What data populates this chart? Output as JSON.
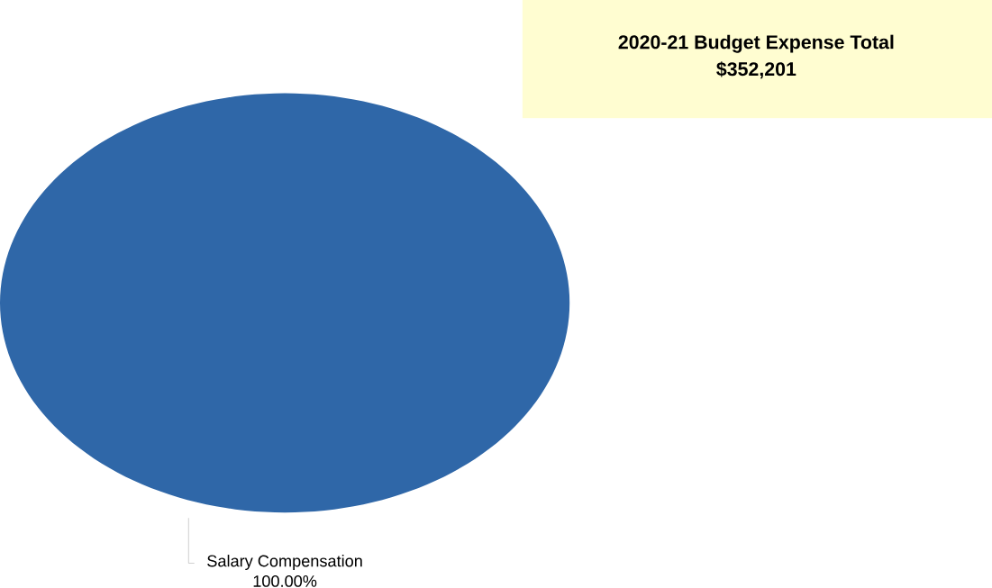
{
  "chart_data": {
    "type": "pie",
    "title": "2020-21 Budget Expense Total",
    "subtitle": "$352,201",
    "categories": [
      "Salary Compensation"
    ],
    "values": [
      100
    ],
    "colors": [
      "#2f67a8"
    ],
    "value_labels": [
      "100.00%"
    ]
  }
}
